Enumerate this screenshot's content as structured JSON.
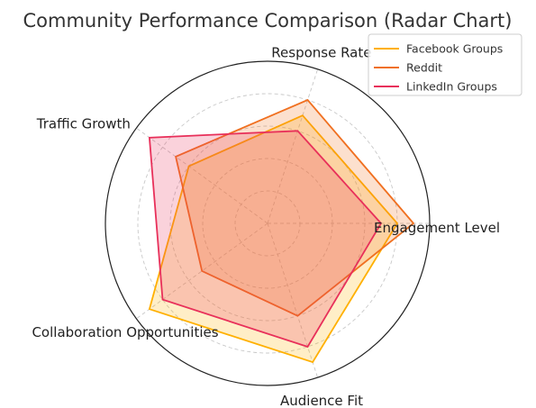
{
  "chart_data": {
    "type": "radar",
    "title": "Community Performance Comparison (Radar Chart)",
    "axes": [
      "Engagement Level",
      "Response Rate",
      "Traffic Growth",
      "Collaboration Opportunities",
      "Audience Fit"
    ],
    "rmax": 10,
    "grid": true,
    "legend_position": "top-right",
    "series": [
      {
        "name": "Facebook Groups",
        "values": [
          8,
          7,
          6,
          9,
          9
        ],
        "color": "#FFB000"
      },
      {
        "name": "Reddit",
        "values": [
          9,
          8,
          7,
          5,
          6
        ],
        "color": "#F07020"
      },
      {
        "name": "LinkedIn Groups",
        "values": [
          7,
          6,
          9,
          8,
          8
        ],
        "color": "#E8305A"
      }
    ]
  }
}
